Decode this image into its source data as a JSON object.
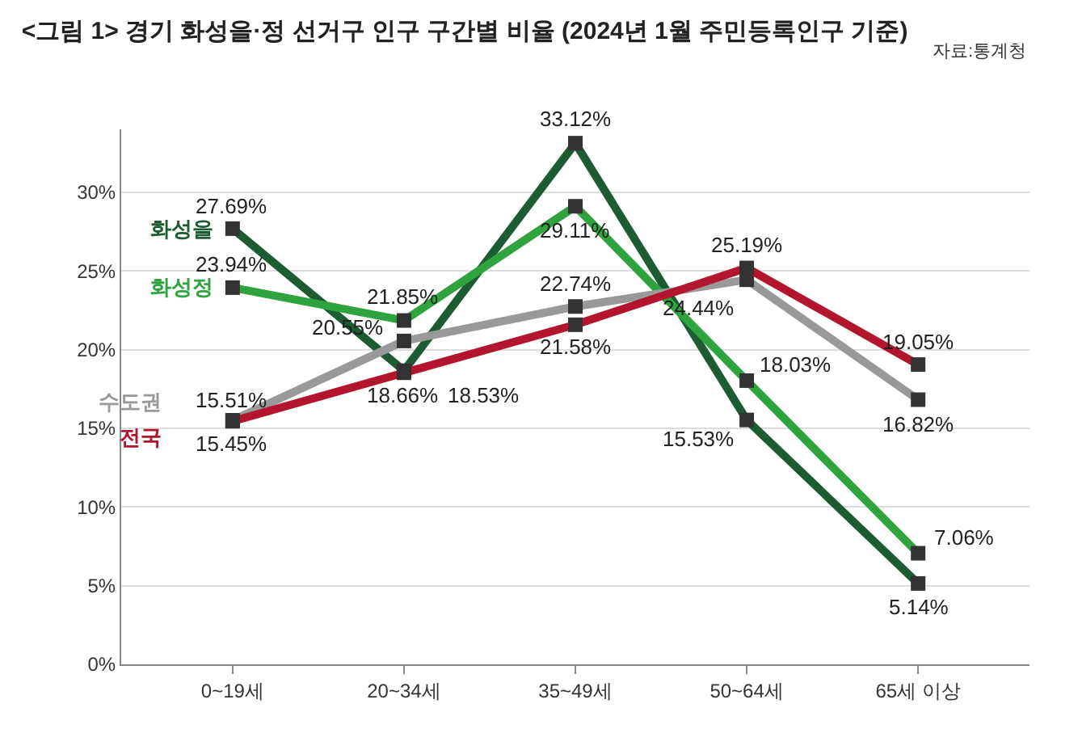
{
  "chart_data": {
    "type": "line",
    "title": "<그림 1> 경기 화성을·정 선거구 인구 구간별 비율 (2024년 1월 주민등록인구 기준)",
    "annotations": [
      "자료:통계청"
    ],
    "categories": [
      "0~19세",
      "20~34세",
      "35~49세",
      "50~64세",
      "65세 이상"
    ],
    "series": [
      {
        "name": "화성을",
        "color": "#1d5c32",
        "values": [
          27.69,
          18.66,
          33.12,
          15.53,
          5.14
        ],
        "value_labels": [
          "27.69%",
          "18.66%",
          "33.12%",
          "15.53%",
          "5.14%"
        ]
      },
      {
        "name": "화성정",
        "color": "#2fa33e",
        "values": [
          23.94,
          21.85,
          29.11,
          18.03,
          7.06
        ],
        "value_labels": [
          "23.94%",
          "21.85%",
          "29.11%",
          "18.03%",
          "7.06%"
        ]
      },
      {
        "name": "수도권",
        "color": "#999999",
        "values": [
          15.51,
          20.55,
          22.74,
          24.44,
          16.82
        ],
        "value_labels": [
          "15.51%",
          "20.55%",
          "22.74%",
          "24.44%",
          "16.82%"
        ]
      },
      {
        "name": "전국",
        "color": "#b3162c",
        "values": [
          15.45,
          18.53,
          21.58,
          25.19,
          19.05
        ],
        "value_labels": [
          "15.45%",
          "18.53%",
          "21.58%",
          "25.19%",
          "19.05%"
        ]
      }
    ],
    "ylim": [
      0,
      34
    ],
    "yticks": [
      {
        "value": 0,
        "label": "0%"
      },
      {
        "value": 5,
        "label": "5%"
      },
      {
        "value": 10,
        "label": "10%"
      },
      {
        "value": 15,
        "label": "15%"
      },
      {
        "value": 20,
        "label": "20%"
      },
      {
        "value": 25,
        "label": "25%"
      },
      {
        "value": 30,
        "label": "30%"
      }
    ],
    "grid": "y",
    "legend": false,
    "marker": "square",
    "line_style": "solid"
  }
}
